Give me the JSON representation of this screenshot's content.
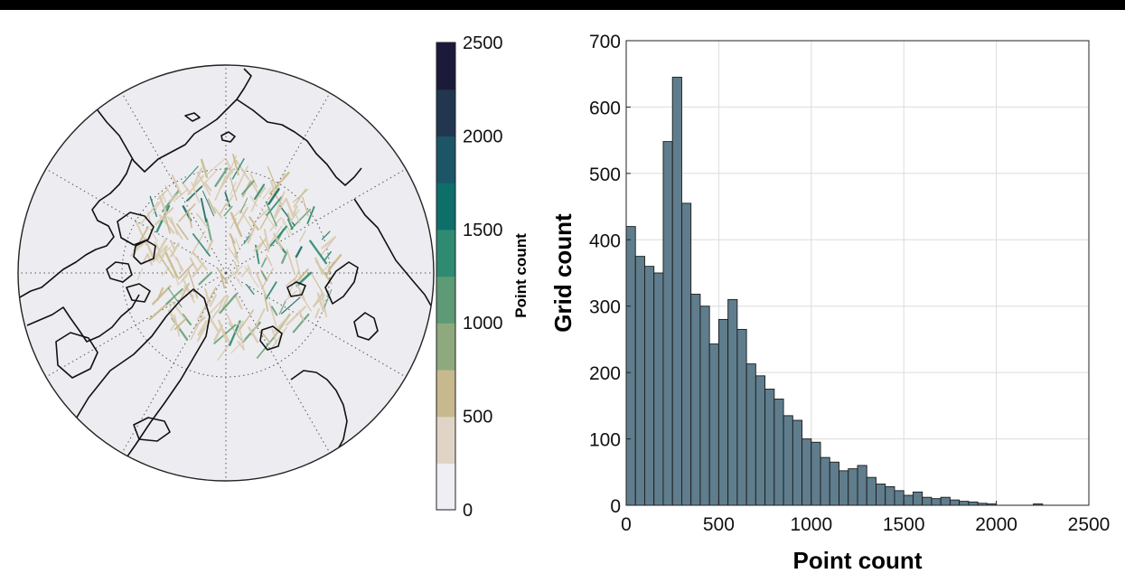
{
  "colorbar": {
    "label": "Point count",
    "ticks": [
      "2500",
      "2000",
      "1500",
      "1000",
      "500",
      "0"
    ],
    "range": [
      0,
      2500
    ],
    "levels": [
      "#eeeef4",
      "#dfd4c6",
      "#c8b88e",
      "#8ea97e",
      "#5d9a76",
      "#2f8a72",
      "#0e6e6a",
      "#1b5566",
      "#22374f",
      "#1b1a3a"
    ]
  },
  "map": {
    "ocean_color": "#ededf1",
    "track_colors": [
      "#d8cbb0",
      "#c9b98a",
      "#6aa27a",
      "#2e8b70",
      "#1a6c5e"
    ]
  },
  "chart_data": {
    "type": "bar",
    "title": "",
    "xlabel": "Point count",
    "ylabel": "Grid count",
    "xlim": [
      0,
      2500
    ],
    "ylim": [
      0,
      700
    ],
    "xticks": [
      "0",
      "500",
      "1000",
      "1500",
      "2000",
      "2500"
    ],
    "yticks": [
      "0",
      "100",
      "200",
      "300",
      "400",
      "500",
      "600",
      "700"
    ],
    "bin_width": 50,
    "grid": true,
    "bar_color": "#5f7d8c",
    "bin_starts": [
      0,
      50,
      100,
      150,
      200,
      250,
      300,
      350,
      400,
      450,
      500,
      550,
      600,
      650,
      700,
      750,
      800,
      850,
      900,
      950,
      1000,
      1050,
      1100,
      1150,
      1200,
      1250,
      1300,
      1350,
      1400,
      1450,
      1500,
      1550,
      1600,
      1650,
      1700,
      1750,
      1800,
      1850,
      1900,
      1950,
      2000,
      2050,
      2100,
      2150,
      2200,
      2250,
      2300,
      2350,
      2400,
      2450
    ],
    "values": [
      420,
      375,
      360,
      350,
      548,
      645,
      455,
      318,
      300,
      243,
      280,
      310,
      265,
      213,
      195,
      175,
      160,
      135,
      128,
      100,
      95,
      72,
      65,
      52,
      55,
      60,
      42,
      32,
      28,
      22,
      15,
      20,
      12,
      10,
      12,
      8,
      6,
      5,
      3,
      2,
      0,
      0,
      0,
      0,
      2,
      0,
      0,
      0,
      0,
      0
    ]
  }
}
